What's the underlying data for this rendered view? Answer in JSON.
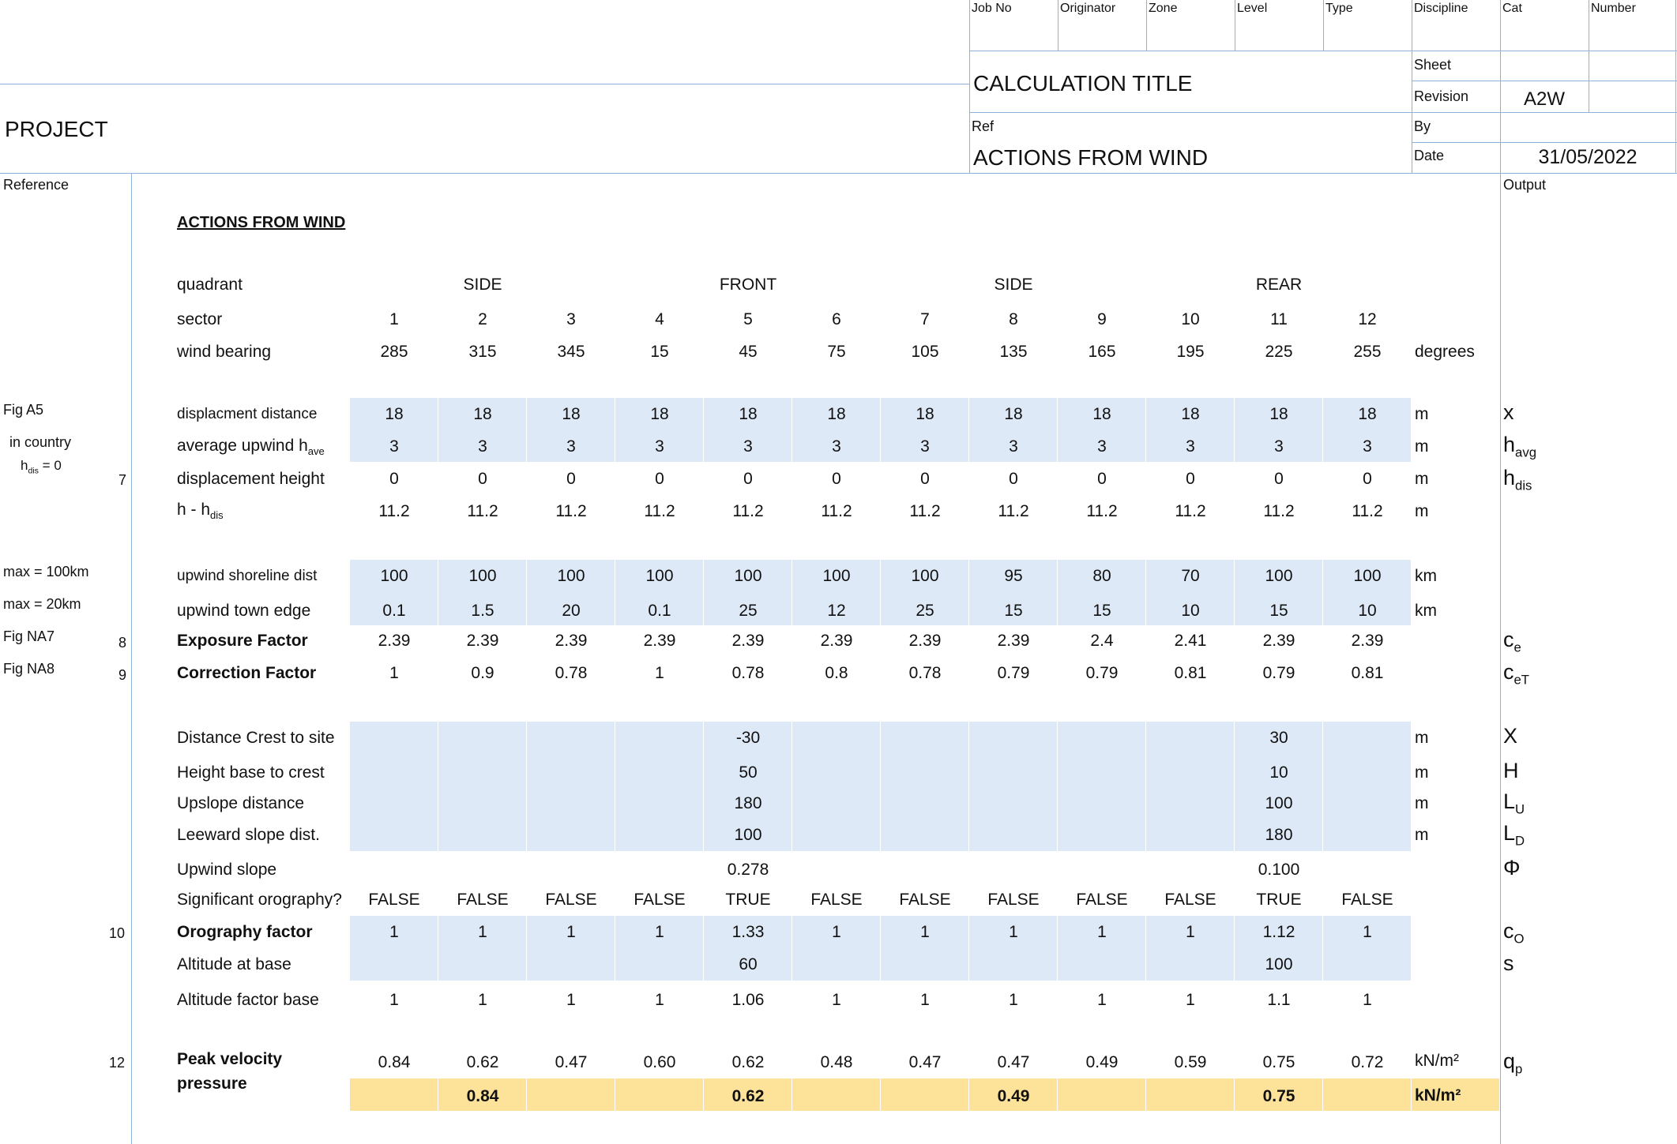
{
  "header": {
    "project_label": "PROJECT",
    "titleblock_headers": [
      "Job No",
      "Originator",
      "Zone",
      "Level",
      "Type",
      "Discipline",
      "Cat",
      "Number"
    ],
    "calc_title": "CALCULATION TITLE",
    "ref_label": "Ref",
    "ref_value": "ACTIONS FROM WIND",
    "sheet_label": "Sheet",
    "sheet_value": "",
    "revision_label": "Revision",
    "revision_value": "A2W",
    "by_label": "By",
    "by_value": "",
    "date_label": "Date",
    "date_value": "31/05/2022"
  },
  "columns": {
    "reference": "Reference",
    "output": "Output"
  },
  "section_title": "ACTIONS FROM WIND",
  "quadrant": {
    "label": "quadrant",
    "values": [
      "SIDE",
      "FRONT",
      "SIDE",
      "REAR"
    ]
  },
  "sector": {
    "label": "sector",
    "values": [
      "1",
      "2",
      "3",
      "4",
      "5",
      "6",
      "7",
      "8",
      "9",
      "10",
      "11",
      "12"
    ]
  },
  "wind_bearing": {
    "label": "wind bearing",
    "values": [
      "285",
      "315",
      "345",
      "15",
      "45",
      "75",
      "105",
      "135",
      "165",
      "195",
      "225",
      "255"
    ],
    "unit": "degrees"
  },
  "references": {
    "fig_a5": "Fig A5",
    "in_country": "in country",
    "hdis_eq": "= 0",
    "r7": "7",
    "max100": "max  = 100km",
    "max20": "max = 20km",
    "fig_na7": "Fig NA7",
    "r8": "8",
    "fig_na8": "Fig NA8",
    "r9": "9",
    "r10": "10",
    "r12": "12"
  },
  "rows": {
    "displacement_distance": {
      "label": "displacment distance",
      "values": [
        "18",
        "18",
        "18",
        "18",
        "18",
        "18",
        "18",
        "18",
        "18",
        "18",
        "18",
        "18"
      ],
      "unit": "m",
      "output": "x"
    },
    "average_upwind": {
      "label": "average upwind h",
      "sub": "ave",
      "values": [
        "3",
        "3",
        "3",
        "3",
        "3",
        "3",
        "3",
        "3",
        "3",
        "3",
        "3",
        "3"
      ],
      "unit": "m",
      "output": "h",
      "output_sub": "avg"
    },
    "displacement_height": {
      "label": "displacement height",
      "values": [
        "0",
        "0",
        "0",
        "0",
        "0",
        "0",
        "0",
        "0",
        "0",
        "0",
        "0",
        "0"
      ],
      "unit": "m",
      "output": "h",
      "output_sub": "dis"
    },
    "h_minus_hdis": {
      "label": "h - h",
      "sub": "dis",
      "values": [
        "11.2",
        "11.2",
        "11.2",
        "11.2",
        "11.2",
        "11.2",
        "11.2",
        "11.2",
        "11.2",
        "11.2",
        "11.2",
        "11.2"
      ],
      "unit": "m"
    },
    "upwind_shoreline": {
      "label": "upwind shoreline dist",
      "values": [
        "100",
        "100",
        "100",
        "100",
        "100",
        "100",
        "100",
        "95",
        "80",
        "70",
        "100",
        "100"
      ],
      "unit": "km"
    },
    "upwind_town": {
      "label": "upwind town edge",
      "values": [
        "0.1",
        "1.5",
        "20",
        "0.1",
        "25",
        "12",
        "25",
        "15",
        "15",
        "10",
        "15",
        "10"
      ],
      "unit": "km"
    },
    "exposure_factor": {
      "label": "Exposure Factor",
      "values": [
        "2.39",
        "2.39",
        "2.39",
        "2.39",
        "2.39",
        "2.39",
        "2.39",
        "2.39",
        "2.4",
        "2.41",
        "2.39",
        "2.39"
      ],
      "output": "c",
      "output_sub": "e"
    },
    "correction_factor": {
      "label": "Correction Factor",
      "values": [
        "1",
        "0.9",
        "0.78",
        "1",
        "0.78",
        "0.8",
        "0.78",
        "0.79",
        "0.79",
        "0.81",
        "0.79",
        "0.81"
      ],
      "output": "c",
      "output_sub": "eT"
    },
    "distance_crest": {
      "label": "Distance Crest to site",
      "values": [
        "",
        "",
        "",
        "",
        "-30",
        "",
        "",
        "",
        "",
        "",
        "30",
        ""
      ],
      "unit": "m",
      "output": "X"
    },
    "height_base": {
      "label": "Height base to crest",
      "values": [
        "",
        "",
        "",
        "",
        "50",
        "",
        "",
        "",
        "",
        "",
        "10",
        ""
      ],
      "unit": "m",
      "output": "H"
    },
    "upslope": {
      "label": "Upslope distance",
      "values": [
        "",
        "",
        "",
        "",
        "180",
        "",
        "",
        "",
        "",
        "",
        "100",
        ""
      ],
      "unit": "m",
      "output": "L",
      "output_sub": "U"
    },
    "leeward": {
      "label": "Leeward slope dist.",
      "values": [
        "",
        "",
        "",
        "",
        "100",
        "",
        "",
        "",
        "",
        "",
        "180",
        ""
      ],
      "unit": "m",
      "output": "L",
      "output_sub": "D"
    },
    "upwind_slope": {
      "label": "Upwind slope",
      "values": [
        "",
        "",
        "",
        "",
        "0.278",
        "",
        "",
        "",
        "",
        "",
        "0.100",
        ""
      ],
      "output": "Φ"
    },
    "significant_orography": {
      "label": "Significant orography?",
      "values": [
        "FALSE",
        "FALSE",
        "FALSE",
        "FALSE",
        "TRUE",
        "FALSE",
        "FALSE",
        "FALSE",
        "FALSE",
        "FALSE",
        "TRUE",
        "FALSE"
      ]
    },
    "orography_factor": {
      "label": "Orography factor",
      "values": [
        "1",
        "1",
        "1",
        "1",
        "1.33",
        "1",
        "1",
        "1",
        "1",
        "1",
        "1.12",
        "1"
      ],
      "output": "c",
      "output_sub": "O"
    },
    "altitude_base": {
      "label": "Altitude at base",
      "values": [
        "",
        "",
        "",
        "",
        "60",
        "",
        "",
        "",
        "",
        "",
        "100",
        ""
      ],
      "output": "s"
    },
    "altitude_factor": {
      "label": "Altitude factor base",
      "values": [
        "1",
        "1",
        "1",
        "1",
        "1.06",
        "1",
        "1",
        "1",
        "1",
        "1",
        "1.1",
        "1"
      ]
    },
    "peak_velocity": {
      "label1": "Peak velocity",
      "label2": "pressure",
      "values": [
        "0.84",
        "0.62",
        "0.47",
        "0.60",
        "0.62",
        "0.48",
        "0.47",
        "0.47",
        "0.49",
        "0.59",
        "0.75",
        "0.72"
      ],
      "unit": "kN/m²",
      "output": "q",
      "output_sub": "p"
    },
    "peak_summary": {
      "values": [
        "0.84",
        "0.62",
        "0.49",
        "0.75"
      ],
      "unit": "kN/m²"
    }
  },
  "colors": {
    "grid": "#8fb0d8",
    "band": "#dde9f6",
    "highlight": "#fde39a"
  }
}
